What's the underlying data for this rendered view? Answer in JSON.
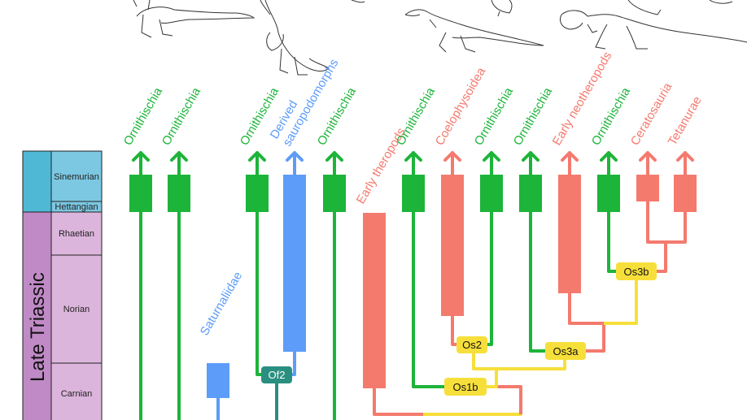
{
  "colors": {
    "ornithischia": "#1db43a",
    "sauropodomorph": "#5d9cf8",
    "theropod": "#f47a6e",
    "yellow": "#f7df3b",
    "teal": "#2a8f80",
    "early_jurassic": "#4eb8d5",
    "late_triassic": "#c08ac6",
    "stage_ej": "#7cc8e2",
    "stage_lt": "#dcb5dc"
  },
  "timescale": {
    "era_label": "Late Triassic",
    "stages": [
      "Sinemurian",
      "Hettangian",
      "Rhaetian",
      "Norian",
      "Carnian"
    ]
  },
  "clade_labels": [
    "Ornithischia",
    "Ornithischia",
    "Saturnaliidae",
    "Ornithischia",
    "Derived sauropodomorphs",
    "Ornithischia",
    "Early theropods",
    "Ornithischia",
    "Coelophysoidea",
    "Ornithischia",
    "Ornithischia",
    "Early neotheropods",
    "Ornithischia",
    "Ceratosauria",
    "Tetanurae"
  ],
  "nodes": [
    "Of2",
    "Os2",
    "Os1b",
    "Os3a",
    "Os3b"
  ],
  "silhouettes": [
    "theropod-sketch",
    "sauropodomorph-sketch",
    "coelophysoid-sketch",
    "ceratosaur-sketch"
  ]
}
